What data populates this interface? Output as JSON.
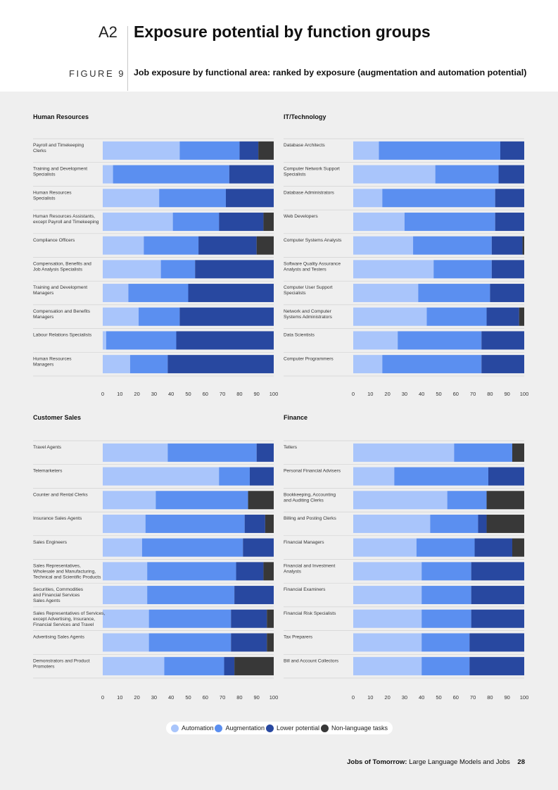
{
  "header": {
    "section_code": "A2",
    "section_title": "Exposure potential by function groups",
    "figure_label": "FIGURE 9",
    "figure_caption": "Job exposure by functional area: ranked by exposure (augmentation and automation potential)"
  },
  "footer": {
    "report_title": "Jobs of Tomorrow:",
    "report_subtitle": "Large Language Models and Jobs",
    "page_number": "28"
  },
  "colors": {
    "automation": "#a9c5fb",
    "augmentation": "#5b8ff0",
    "lower_potential": "#2848a0",
    "non_language": "#383838"
  },
  "legend": [
    {
      "label": "Automation",
      "color": "#a9c5fb"
    },
    {
      "label": "Augmentation",
      "color": "#5b8ff0"
    },
    {
      "label": "Lower potential",
      "color": "#2848a0"
    },
    {
      "label": "Non-language tasks",
      "color": "#383838"
    }
  ],
  "chart_data": [
    {
      "type": "bar",
      "stacked": true,
      "orientation": "horizontal",
      "title": "Human Resources",
      "xlim": [
        0,
        100
      ],
      "xticks": [
        "0",
        "10",
        "20",
        "30",
        "40",
        "50",
        "60",
        "70",
        "80",
        "90",
        "100"
      ],
      "categories": [
        [
          "Payroll and Timekeeping",
          "Clerks"
        ],
        [
          "Training and Development",
          "Specialists"
        ],
        [
          "Human Resources",
          "Specialists"
        ],
        [
          "Human Resources Assistants,",
          "except Payroll and Timekeeping"
        ],
        [
          "Compliance Officers"
        ],
        [
          "Compensation, Benefits and",
          "Job Analysis Specialists"
        ],
        [
          "Training and Development",
          "Managers"
        ],
        [
          "Compensation and Benefits",
          "Managers"
        ],
        [
          "Labour Relations Specialists"
        ],
        [
          "Human Resources",
          "Managers"
        ]
      ],
      "series": [
        {
          "name": "Automation",
          "values": [
            45,
            6,
            33,
            41,
            24,
            34,
            15,
            21,
            2,
            16
          ]
        },
        {
          "name": "Augmentation",
          "values": [
            35,
            68,
            39,
            27,
            32,
            20,
            35,
            24,
            41,
            22
          ]
        },
        {
          "name": "Lower potential",
          "values": [
            11,
            26,
            28,
            26,
            34,
            46,
            50,
            55,
            57,
            62
          ]
        },
        {
          "name": "Non-language tasks",
          "values": [
            9,
            0,
            0,
            6,
            10,
            0,
            0,
            0,
            0,
            0
          ]
        }
      ]
    },
    {
      "type": "bar",
      "stacked": true,
      "orientation": "horizontal",
      "title": "IT/Technology",
      "xlim": [
        0,
        100
      ],
      "xticks": [
        "0",
        "10",
        "20",
        "30",
        "40",
        "50",
        "60",
        "70",
        "80",
        "90",
        "100"
      ],
      "categories": [
        [
          "Database Architects"
        ],
        [
          "Computer Network Support",
          "Specialists"
        ],
        [
          "Database Administrators"
        ],
        [
          "Web Developers"
        ],
        [
          "Computer Systems Analysts"
        ],
        [
          "Software Quality Assurance",
          "Analysts and Testers"
        ],
        [
          "Computer User Support",
          "Specialists"
        ],
        [
          "Network and Computer",
          "Systems Administrators"
        ],
        [
          "Data Scientists"
        ],
        [
          "Computer Programmers"
        ]
      ],
      "series": [
        {
          "name": "Automation",
          "values": [
            15,
            48,
            17,
            30,
            35,
            47,
            38,
            43,
            26,
            17
          ]
        },
        {
          "name": "Augmentation",
          "values": [
            71,
            37,
            66,
            53,
            46,
            34,
            42,
            35,
            49,
            58
          ]
        },
        {
          "name": "Lower potential",
          "values": [
            14,
            15,
            17,
            17,
            18,
            19,
            20,
            19,
            25,
            25
          ]
        },
        {
          "name": "Non-language tasks",
          "values": [
            0,
            0,
            0,
            0,
            1,
            0,
            0,
            3,
            0,
            0
          ]
        }
      ]
    },
    {
      "type": "bar",
      "stacked": true,
      "orientation": "horizontal",
      "title": "Customer Sales",
      "xlim": [
        0,
        100
      ],
      "xticks": [
        "0",
        "10",
        "20",
        "30",
        "40",
        "50",
        "60",
        "70",
        "80",
        "90",
        "100"
      ],
      "categories": [
        [
          "Travel Agents"
        ],
        [
          "Telemarketers"
        ],
        [
          "Counter and Rental Clerks"
        ],
        [
          "Insurance Sales Agents"
        ],
        [
          "Sales Engineers"
        ],
        [
          "Sales Representatives,",
          "Wholesale and Manufacturing,",
          "Technical and Scientific Products"
        ],
        [
          "Securities, Commodities",
          "and Financial Services",
          "Sales Agents"
        ],
        [
          "Sales Representatives of Services,",
          "except Advertising, Insurance,",
          "Financial Services and Travel"
        ],
        [
          "Advertising Sales Agents"
        ],
        [
          "Demonstrators and Product",
          "Promoters"
        ]
      ],
      "series": [
        {
          "name": "Automation",
          "values": [
            38,
            68,
            31,
            25,
            23,
            26,
            26,
            27,
            27,
            36
          ]
        },
        {
          "name": "Augmentation",
          "values": [
            52,
            18,
            54,
            58,
            59,
            52,
            51,
            48,
            48,
            35
          ]
        },
        {
          "name": "Lower potential",
          "values": [
            10,
            14,
            0,
            12,
            18,
            16,
            23,
            21,
            21,
            6
          ]
        },
        {
          "name": "Non-language tasks",
          "values": [
            0,
            0,
            15,
            5,
            0,
            6,
            0,
            4,
            4,
            23
          ]
        }
      ]
    },
    {
      "type": "bar",
      "stacked": true,
      "orientation": "horizontal",
      "title": "Finance",
      "xlim": [
        0,
        100
      ],
      "xticks": [
        "0",
        "10",
        "20",
        "30",
        "40",
        "50",
        "60",
        "70",
        "80",
        "90",
        "100"
      ],
      "categories": [
        [
          "Tellers"
        ],
        [
          "Personal Financial Advisers"
        ],
        [
          "Bookkeeping, Accounting",
          "and Auditing Clerks"
        ],
        [
          "Billing and Posting Clerks"
        ],
        [
          "Financial Managers"
        ],
        [
          "Financial and Investment",
          "Analysts"
        ],
        [
          "Financial Examiners"
        ],
        [
          "Financial Risk Specialists"
        ],
        [
          "Tax Preparers"
        ],
        [
          "Bill and Account Collectors"
        ]
      ],
      "series": [
        {
          "name": "Automation",
          "values": [
            59,
            24,
            55,
            45,
            37,
            40,
            40,
            40,
            40,
            40
          ]
        },
        {
          "name": "Augmentation",
          "values": [
            34,
            55,
            23,
            28,
            34,
            29,
            29,
            29,
            28,
            28
          ]
        },
        {
          "name": "Lower potential",
          "values": [
            0,
            21,
            0,
            5,
            22,
            31,
            31,
            31,
            32,
            32
          ]
        },
        {
          "name": "Non-language tasks",
          "values": [
            7,
            0,
            22,
            22,
            7,
            0,
            0,
            0,
            0,
            0
          ]
        }
      ]
    }
  ]
}
